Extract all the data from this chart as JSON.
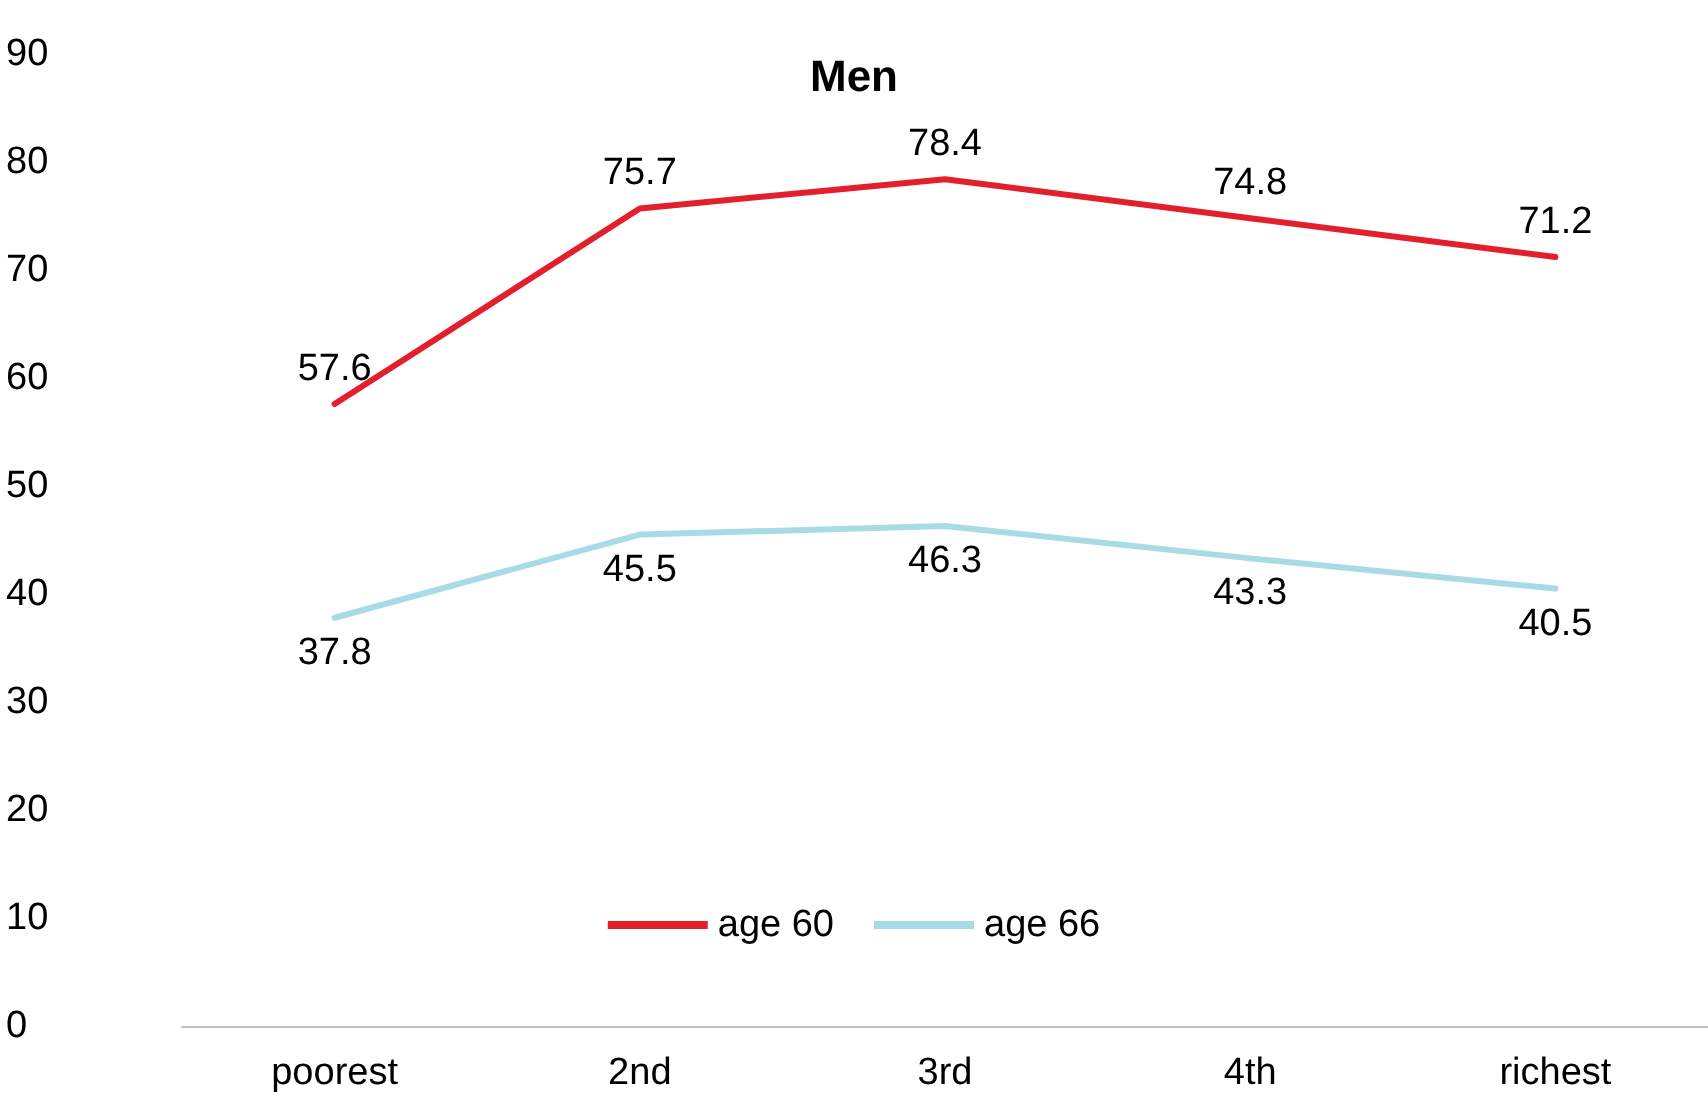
{
  "chart_data": {
    "type": "line",
    "title": "Men",
    "categories": [
      "poorest",
      "2nd",
      "3rd",
      "4th",
      "richest"
    ],
    "series": [
      {
        "name": "age 60",
        "color": "#e31e2d",
        "values": [
          57.6,
          75.7,
          78.4,
          74.8,
          71.2
        ]
      },
      {
        "name": "age 66",
        "color": "#a9dbe6",
        "values": [
          37.8,
          45.5,
          46.3,
          43.3,
          40.5
        ]
      }
    ],
    "ylim": [
      0,
      90
    ],
    "yticks": [
      0,
      10,
      20,
      30,
      40,
      50,
      60,
      70,
      80,
      90
    ],
    "grid": false,
    "legend": "bottom",
    "data_labels": true,
    "marker": "none",
    "line_style": "solid"
  }
}
